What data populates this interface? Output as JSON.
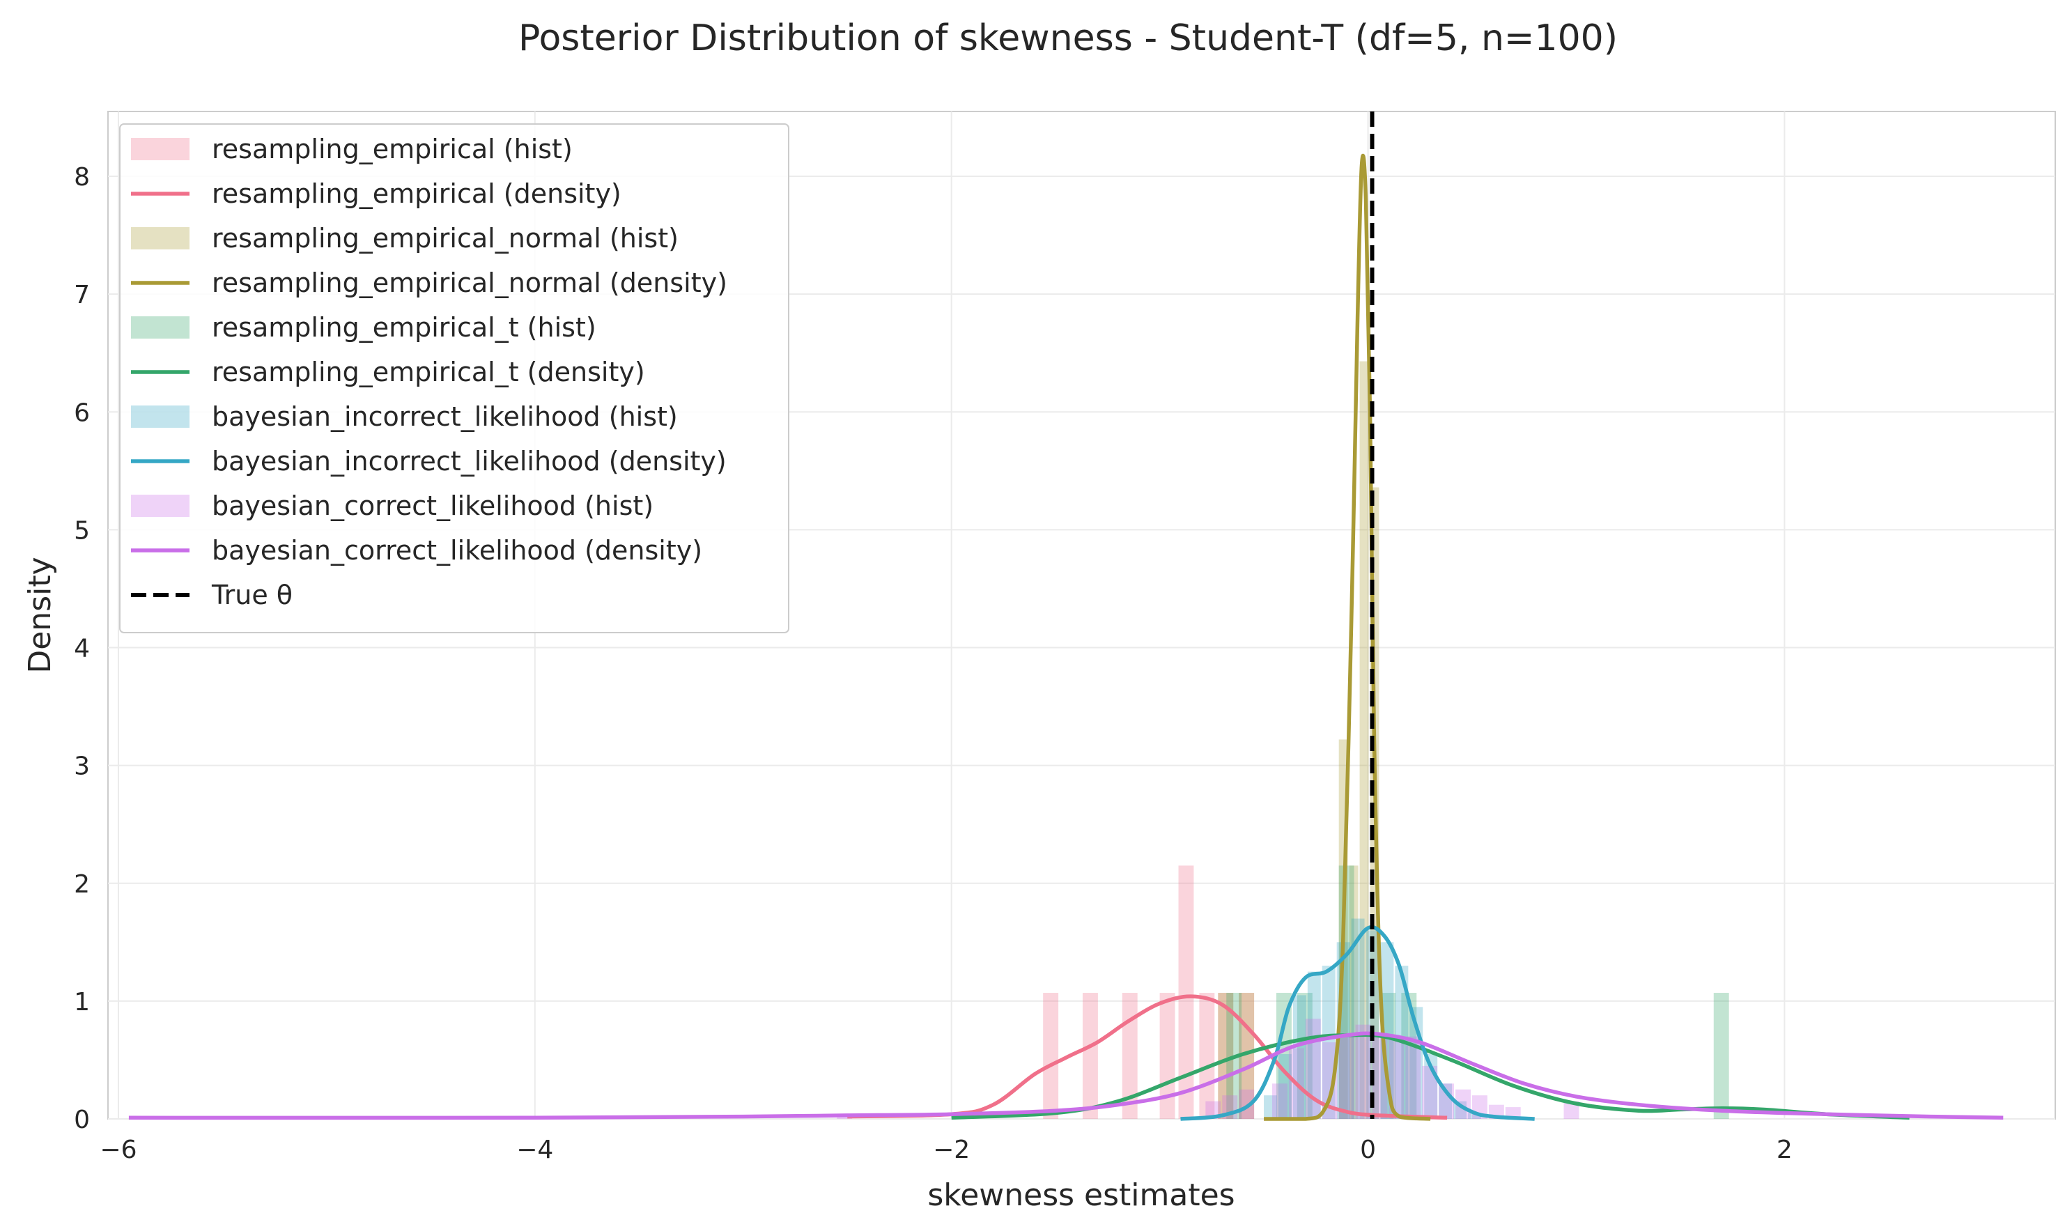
{
  "chart_data": {
    "type": "histogram-density",
    "title": "Posterior Distribution of skewness - Student-T (df=5, n=100)",
    "xlabel": "skewness estimates",
    "ylabel": "Density",
    "xlim": [
      -6.05,
      3.3
    ],
    "ylim": [
      0,
      8.55
    ],
    "x_ticks": [
      -6,
      -4,
      -2,
      0,
      2
    ],
    "x_tick_labels": [
      "−6",
      "−4",
      "−2",
      "0",
      "2"
    ],
    "y_ticks": [
      0,
      1,
      2,
      3,
      4,
      5,
      6,
      7,
      8
    ],
    "y_tick_labels": [
      "0",
      "1",
      "2",
      "3",
      "4",
      "5",
      "6",
      "7",
      "8"
    ],
    "grid": true,
    "legend_position": "top-left",
    "true_theta": 0.02,
    "true_theta_label": "True θ",
    "true_theta_color": "#000000",
    "series": [
      {
        "name": "resampling_empirical",
        "hist_label": "resampling_empirical (hist)",
        "density_label": "resampling_empirical (density)",
        "color": "#f0708a",
        "hist_bins": [
          [
            -1.56,
            -1.48,
            1.07
          ],
          [
            -1.37,
            -1.29,
            1.07
          ],
          [
            -1.18,
            -1.1,
            1.07
          ],
          [
            -1.0,
            -0.92,
            1.07
          ],
          [
            -0.91,
            -0.83,
            2.15
          ],
          [
            -0.81,
            -0.73,
            1.07
          ],
          [
            -0.72,
            -0.64,
            1.07
          ],
          [
            -0.62,
            -0.54,
            1.07
          ]
        ],
        "density_points": [
          [
            -2.5,
            0.02
          ],
          [
            -2.0,
            0.04
          ],
          [
            -1.8,
            0.12
          ],
          [
            -1.6,
            0.38
          ],
          [
            -1.45,
            0.52
          ],
          [
            -1.3,
            0.65
          ],
          [
            -1.15,
            0.83
          ],
          [
            -1.0,
            0.98
          ],
          [
            -0.85,
            1.04
          ],
          [
            -0.7,
            0.97
          ],
          [
            -0.55,
            0.72
          ],
          [
            -0.4,
            0.4
          ],
          [
            -0.25,
            0.16
          ],
          [
            -0.1,
            0.06
          ],
          [
            0.05,
            0.03
          ],
          [
            0.38,
            0.01
          ]
        ]
      },
      {
        "name": "resampling_empirical_normal",
        "hist_label": "resampling_empirical_normal (hist)",
        "density_label": "resampling_empirical_normal (density)",
        "color": "#a99a35",
        "hist_bins": [
          [
            -0.72,
            -0.64,
            1.07
          ],
          [
            -0.62,
            -0.54,
            1.07
          ],
          [
            -0.14,
            -0.09,
            3.22
          ],
          [
            -0.09,
            -0.04,
            2.15
          ],
          [
            -0.04,
            0.01,
            6.43
          ],
          [
            0.01,
            0.06,
            5.36
          ]
        ],
        "density_points": [
          [
            -0.5,
            0.0
          ],
          [
            -0.3,
            0.0
          ],
          [
            -0.22,
            0.05
          ],
          [
            -0.16,
            0.4
          ],
          [
            -0.12,
            1.5
          ],
          [
            -0.08,
            4.2
          ],
          [
            -0.05,
            6.8
          ],
          [
            -0.03,
            8.1
          ],
          [
            -0.01,
            7.8
          ],
          [
            0.01,
            6.0
          ],
          [
            0.03,
            3.2
          ],
          [
            0.06,
            1.1
          ],
          [
            0.1,
            0.25
          ],
          [
            0.15,
            0.02
          ],
          [
            0.3,
            0.0
          ]
        ]
      },
      {
        "name": "resampling_empirical_t",
        "hist_label": "resampling_empirical_t (hist)",
        "density_label": "resampling_empirical_t (density)",
        "color": "#34a66a",
        "hist_bins": [
          [
            -0.68,
            -0.6,
            1.07
          ],
          [
            -0.44,
            -0.36,
            1.07
          ],
          [
            -0.34,
            -0.26,
            1.07
          ],
          [
            -0.14,
            -0.06,
            2.15
          ],
          [
            0.06,
            0.14,
            1.07
          ],
          [
            0.16,
            0.24,
            1.07
          ],
          [
            1.66,
            1.74,
            1.07
          ]
        ],
        "density_points": [
          [
            -2.0,
            0.01
          ],
          [
            -1.5,
            0.05
          ],
          [
            -1.2,
            0.15
          ],
          [
            -0.9,
            0.35
          ],
          [
            -0.6,
            0.55
          ],
          [
            -0.3,
            0.68
          ],
          [
            -0.1,
            0.71
          ],
          [
            0.1,
            0.69
          ],
          [
            0.4,
            0.5
          ],
          [
            0.7,
            0.28
          ],
          [
            1.0,
            0.13
          ],
          [
            1.3,
            0.07
          ],
          [
            1.5,
            0.08
          ],
          [
            1.7,
            0.09
          ],
          [
            1.9,
            0.08
          ],
          [
            2.2,
            0.04
          ],
          [
            2.6,
            0.01
          ]
        ]
      },
      {
        "name": "bayesian_incorrect_likelihood",
        "hist_label": "bayesian_incorrect_likelihood (hist)",
        "density_label": "bayesian_incorrect_likelihood (density)",
        "color": "#35a7c5",
        "hist_bins": [
          [
            -0.5,
            -0.43,
            0.2
          ],
          [
            -0.43,
            -0.36,
            0.55
          ],
          [
            -0.36,
            -0.29,
            1.05
          ],
          [
            -0.29,
            -0.22,
            1.25
          ],
          [
            -0.22,
            -0.15,
            1.3
          ],
          [
            -0.15,
            -0.08,
            1.5
          ],
          [
            -0.08,
            -0.01,
            1.7
          ],
          [
            -0.01,
            0.06,
            1.6
          ],
          [
            0.06,
            0.13,
            1.5
          ],
          [
            0.13,
            0.2,
            1.3
          ],
          [
            0.2,
            0.27,
            0.95
          ],
          [
            0.27,
            0.34,
            0.55
          ],
          [
            0.34,
            0.41,
            0.3
          ],
          [
            0.41,
            0.48,
            0.15
          ],
          [
            0.48,
            0.55,
            0.05
          ]
        ],
        "density_points": [
          [
            -0.9,
            0.0
          ],
          [
            -0.7,
            0.03
          ],
          [
            -0.55,
            0.15
          ],
          [
            -0.45,
            0.5
          ],
          [
            -0.38,
            0.95
          ],
          [
            -0.3,
            1.2
          ],
          [
            -0.2,
            1.25
          ],
          [
            -0.1,
            1.4
          ],
          [
            0.0,
            1.62
          ],
          [
            0.08,
            1.55
          ],
          [
            0.15,
            1.3
          ],
          [
            0.22,
            0.85
          ],
          [
            0.3,
            0.45
          ],
          [
            0.4,
            0.18
          ],
          [
            0.5,
            0.06
          ],
          [
            0.6,
            0.02
          ],
          [
            0.8,
            0.0
          ]
        ]
      },
      {
        "name": "bayesian_correct_likelihood",
        "hist_label": "bayesian_correct_likelihood (hist)",
        "density_label": "bayesian_correct_likelihood (density)",
        "color": "#c96ee8",
        "hist_bins": [
          [
            -2.55,
            -2.47,
            0.04
          ],
          [
            -0.78,
            -0.7,
            0.15
          ],
          [
            -0.7,
            -0.62,
            0.2
          ],
          [
            -0.62,
            -0.54,
            0.25
          ],
          [
            -0.46,
            -0.38,
            0.3
          ],
          [
            -0.38,
            -0.3,
            0.6
          ],
          [
            -0.3,
            -0.22,
            0.85
          ],
          [
            -0.22,
            -0.14,
            0.65
          ],
          [
            -0.14,
            -0.06,
            0.7
          ],
          [
            -0.06,
            0.02,
            0.8
          ],
          [
            0.02,
            0.1,
            0.7
          ],
          [
            0.1,
            0.18,
            0.7
          ],
          [
            0.18,
            0.26,
            0.7
          ],
          [
            0.26,
            0.34,
            0.45
          ],
          [
            0.34,
            0.42,
            0.3
          ],
          [
            0.42,
            0.5,
            0.25
          ],
          [
            0.5,
            0.58,
            0.2
          ],
          [
            0.58,
            0.66,
            0.12
          ],
          [
            0.66,
            0.74,
            0.1
          ],
          [
            0.94,
            1.02,
            0.15
          ]
        ],
        "density_points": [
          [
            -5.95,
            0.01
          ],
          [
            -4.0,
            0.01
          ],
          [
            -3.0,
            0.02
          ],
          [
            -2.5,
            0.03
          ],
          [
            -2.0,
            0.04
          ],
          [
            -1.5,
            0.07
          ],
          [
            -1.2,
            0.12
          ],
          [
            -0.9,
            0.22
          ],
          [
            -0.6,
            0.42
          ],
          [
            -0.35,
            0.62
          ],
          [
            -0.1,
            0.71
          ],
          [
            0.05,
            0.72
          ],
          [
            0.25,
            0.65
          ],
          [
            0.5,
            0.47
          ],
          [
            0.75,
            0.3
          ],
          [
            1.0,
            0.19
          ],
          [
            1.3,
            0.12
          ],
          [
            1.7,
            0.07
          ],
          [
            2.2,
            0.04
          ],
          [
            2.7,
            0.02
          ],
          [
            3.05,
            0.01
          ]
        ]
      }
    ]
  }
}
